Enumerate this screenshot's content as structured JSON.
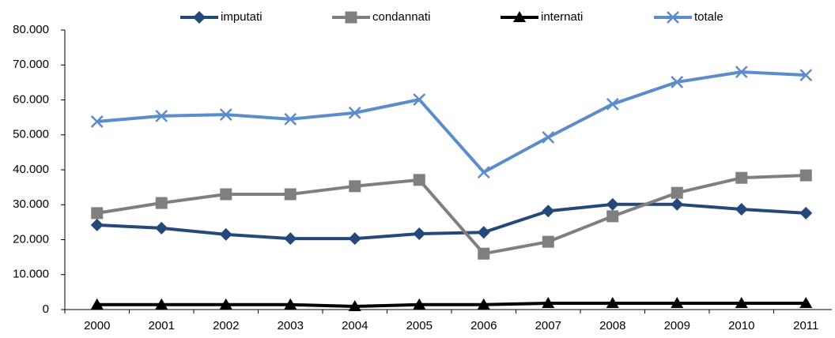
{
  "chart_data": {
    "type": "line",
    "categories": [
      "2000",
      "2001",
      "2002",
      "2003",
      "2004",
      "2005",
      "2006",
      "2007",
      "2008",
      "2009",
      "2010",
      "2011"
    ],
    "series": [
      {
        "name": "imputati",
        "color": "#24487a",
        "marker": "diamond",
        "values": [
          24200,
          23300,
          21500,
          20300,
          20300,
          21700,
          22100,
          28200,
          30100,
          30100,
          28700,
          27600
        ]
      },
      {
        "name": "condannati",
        "color": "#7f7f7f",
        "marker": "square",
        "values": [
          27600,
          30500,
          33000,
          33000,
          35300,
          37100,
          16000,
          19400,
          26700,
          33400,
          37700,
          38400
        ]
      },
      {
        "name": "internati",
        "color": "#000000",
        "marker": "triangle",
        "values": [
          1400,
          1400,
          1400,
          1400,
          900,
          1400,
          1400,
          1800,
          1800,
          1800,
          1800,
          1800
        ]
      },
      {
        "name": "totale",
        "color": "#5b8ccc",
        "marker": "x",
        "values": [
          53800,
          55400,
          55800,
          54500,
          56300,
          60100,
          39300,
          49300,
          58800,
          65100,
          68000,
          67100
        ]
      }
    ],
    "ylim": [
      0,
      80000
    ],
    "yticks": [
      0,
      {
        "value": 10000,
        "label": "10.000"
      },
      {
        "value": 20000,
        "label": "20.000"
      },
      {
        "value": 30000,
        "label": "30.000"
      },
      {
        "value": 40000,
        "label": "40.000"
      },
      {
        "value": 50000,
        "label": "50.000"
      },
      {
        "value": 60000,
        "label": "60.000"
      },
      {
        "value": 70000,
        "label": "70.000"
      },
      {
        "value": 80000,
        "label": "80.000"
      }
    ],
    "legend": "top",
    "grid": false
  }
}
